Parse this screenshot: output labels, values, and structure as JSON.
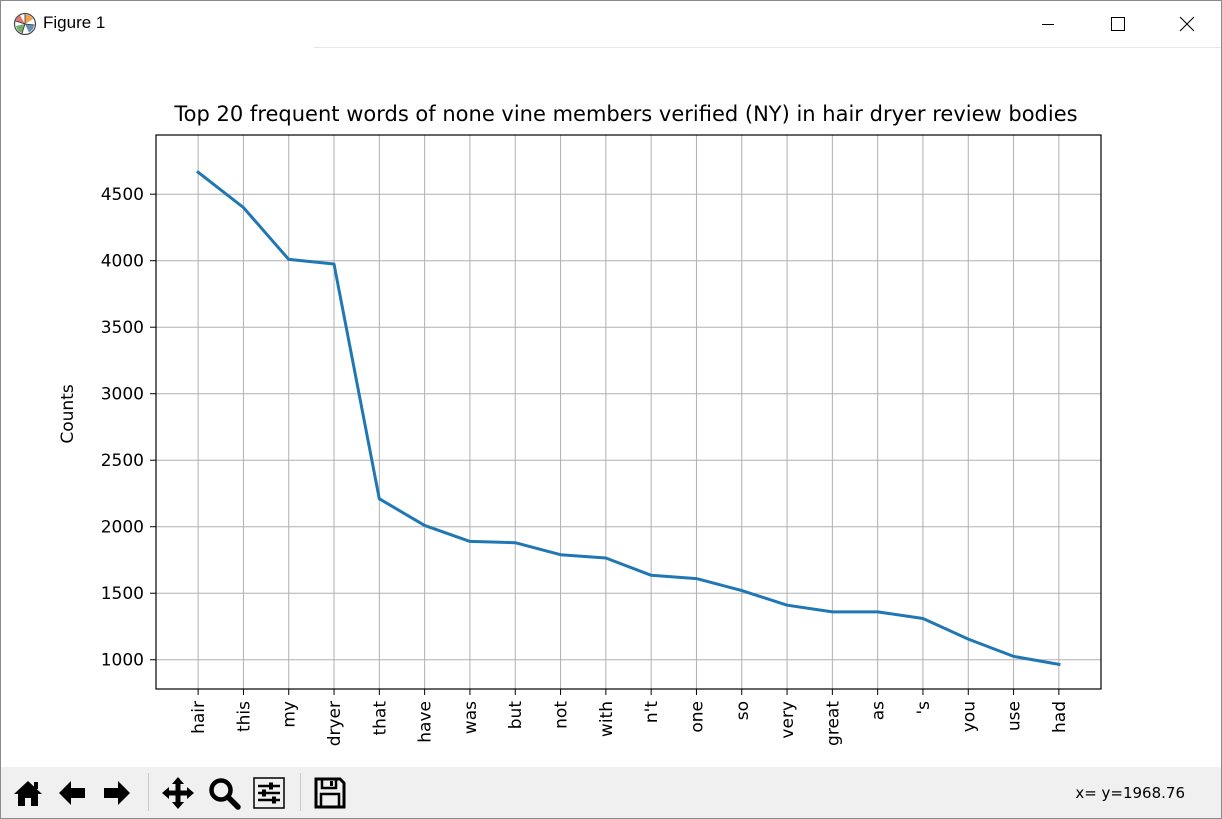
{
  "window": {
    "title": "Figure 1",
    "icon": "matplotlib-logo-icon",
    "controls": [
      "minimize-icon",
      "maximize-icon",
      "close-icon"
    ]
  },
  "toolbar": {
    "buttons": [
      {
        "name": "home-button",
        "icon": "home-icon"
      },
      {
        "name": "back-button",
        "icon": "arrow-left-icon"
      },
      {
        "name": "forward-button",
        "icon": "arrow-right-icon"
      },
      {
        "name": "pan-button",
        "icon": "move-icon"
      },
      {
        "name": "zoom-button",
        "icon": "magnifier-icon"
      },
      {
        "name": "subplots-button",
        "icon": "sliders-icon"
      },
      {
        "name": "save-button",
        "icon": "floppy-disk-icon"
      }
    ],
    "coords": "x= y=1968.76"
  },
  "chart_data": {
    "type": "line",
    "title": "Top 20 frequent words of none vine members verified (NY) in hair dryer review bodies",
    "xlabel": "",
    "ylabel": "Counts",
    "categories": [
      "hair",
      "this",
      "my",
      "dryer",
      "that",
      "have",
      "was",
      "but",
      "not",
      "with",
      "n't",
      "one",
      "so",
      "very",
      "great",
      "as",
      "'s",
      "you",
      "use",
      "had"
    ],
    "values": [
      4665,
      4400,
      4010,
      3975,
      2210,
      2010,
      1890,
      1880,
      1790,
      1765,
      1635,
      1610,
      1520,
      1410,
      1360,
      1360,
      1310,
      1155,
      1025,
      965
    ],
    "yticks": [
      1000,
      1500,
      2000,
      2500,
      3000,
      3500,
      4000,
      4500
    ],
    "ylim": [
      780,
      4945
    ],
    "xlim": [
      -0.93,
      19.93
    ],
    "grid": true,
    "line_color": "#1f77b4"
  }
}
